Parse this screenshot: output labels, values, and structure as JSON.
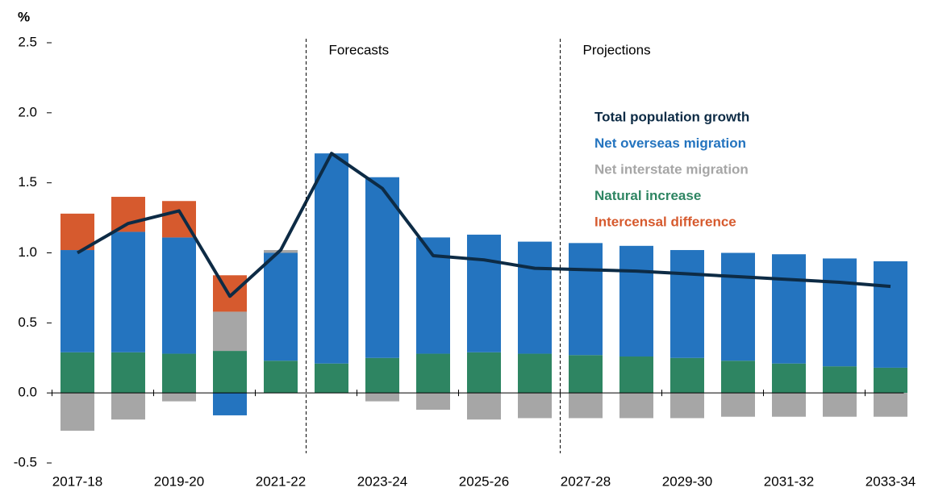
{
  "chart_data": {
    "type": "bar",
    "y_label": "%",
    "categories": [
      "2017-18",
      null,
      "2019-20",
      null,
      "2021-22",
      null,
      "2023-24",
      null,
      "2025-26",
      null,
      "2027-28",
      null,
      "2029-30",
      null,
      "2031-32",
      null,
      "2033-34"
    ],
    "annotations": [
      "Forecasts",
      "Projections"
    ],
    "ylim": [
      -0.5,
      2.5
    ],
    "yticks": [
      -0.5,
      {
        "value": 0,
        "label": "0.0"
      },
      0.5,
      {
        "value": 1,
        "label": "1.0"
      },
      1.5,
      {
        "value": 2,
        "label": "2.0"
      },
      2.5
    ],
    "series": [
      {
        "name": "Total population growth",
        "type": "line",
        "color": "#0d2b45",
        "values": [
          1.0,
          1.21,
          1.3,
          0.69,
          1.02,
          1.71,
          1.46,
          0.98,
          0.95,
          0.89,
          0.88,
          0.87,
          0.85,
          0.83,
          0.81,
          0.79,
          0.76
        ]
      },
      {
        "name": "Net overseas migration",
        "type": "bar",
        "color": "#2474bf",
        "values": [
          0.73,
          0.86,
          0.83,
          -0.16,
          0.77,
          1.5,
          1.29,
          0.83,
          0.84,
          0.8,
          0.8,
          0.79,
          0.77,
          0.77,
          0.78,
          0.77,
          0.76
        ]
      },
      {
        "name": "Net interstate migration",
        "type": "bar",
        "color": "#a6a6a6",
        "values": [
          -0.27,
          -0.19,
          -0.06,
          0.28,
          0.02,
          null,
          -0.06,
          -0.12,
          -0.19,
          -0.18,
          -0.18,
          -0.18,
          -0.18,
          -0.17,
          -0.17,
          -0.17,
          -0.17
        ]
      },
      {
        "name": "Natural increase",
        "type": "bar",
        "color": "#2e8562",
        "values": [
          0.29,
          0.29,
          0.28,
          0.3,
          0.23,
          0.21,
          0.25,
          0.28,
          0.29,
          0.28,
          0.27,
          0.26,
          0.25,
          0.23,
          0.21,
          0.19,
          0.18
        ]
      },
      {
        "name": "Intercensal difference",
        "type": "bar",
        "color": "#d65a2e",
        "values": [
          0.26,
          0.25,
          0.26,
          0.26,
          null,
          null,
          null,
          null,
          null,
          null,
          null,
          null,
          null,
          null,
          null,
          null,
          null
        ]
      }
    ]
  }
}
